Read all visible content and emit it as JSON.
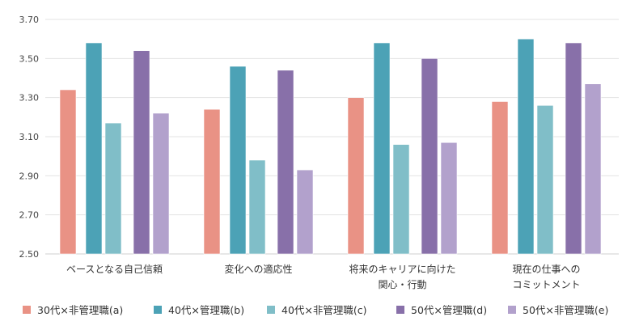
{
  "chart_data": {
    "type": "bar",
    "title": "",
    "xlabel": "",
    "ylabel": "",
    "ylim": [
      2.5,
      3.7
    ],
    "yticks": [
      "2.50",
      "2.70",
      "2.90",
      "3.10",
      "3.30",
      "3.50",
      "3.70"
    ],
    "grid": true,
    "legend_position": "bottom",
    "categories": [
      [
        "ベースとなる自己信頼"
      ],
      [
        "変化への適応性"
      ],
      [
        "将来のキャリアに向けた",
        "関心・行動"
      ],
      [
        "現在の仕事への",
        "コミットメント"
      ]
    ],
    "series": [
      {
        "name": "30代×非管理職(a)",
        "color": "#e99285",
        "values": [
          3.34,
          3.24,
          3.3,
          3.28
        ]
      },
      {
        "name": "40代×管理職(b)",
        "color": "#4ca2b6",
        "values": [
          3.58,
          3.46,
          3.58,
          3.6
        ]
      },
      {
        "name": "40代×非管理職(c)",
        "color": "#80bec8",
        "values": [
          3.17,
          2.98,
          3.06,
          3.26
        ]
      },
      {
        "name": "50代×管理職(d)",
        "color": "#8870a9",
        "values": [
          3.54,
          3.44,
          3.5,
          3.58
        ]
      },
      {
        "name": "50代×非管理職(e)",
        "color": "#b2a1cc",
        "values": [
          3.22,
          2.93,
          3.07,
          3.37
        ]
      }
    ]
  }
}
